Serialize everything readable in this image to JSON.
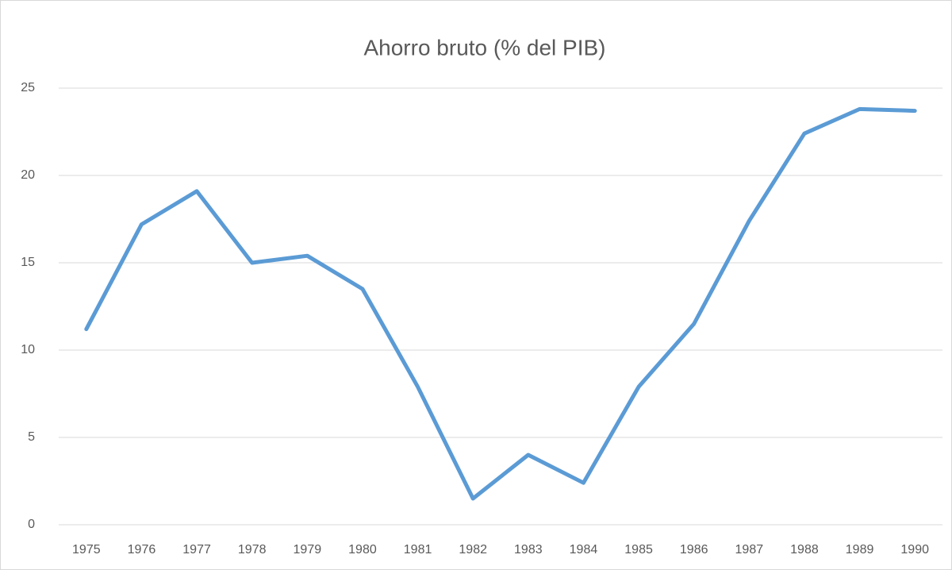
{
  "chart_data": {
    "type": "line",
    "title": "Ahorro bruto (% del PIB)",
    "categories": [
      "1975",
      "1976",
      "1977",
      "1978",
      "1979",
      "1980",
      "1981",
      "1982",
      "1983",
      "1984",
      "1985",
      "1986",
      "1987",
      "1988",
      "1989",
      "1990"
    ],
    "series": [
      {
        "name": "Ahorro bruto (% del PIB)",
        "color": "#5b9bd5",
        "values": [
          11.2,
          17.2,
          19.1,
          15.0,
          15.4,
          13.5,
          7.9,
          1.5,
          4.0,
          2.4,
          7.9,
          11.5,
          17.4,
          22.4,
          23.8,
          23.7
        ]
      }
    ],
    "ylim": [
      0,
      25
    ],
    "yticks": [
      0,
      5,
      10,
      15,
      20,
      25
    ],
    "grid": true
  }
}
